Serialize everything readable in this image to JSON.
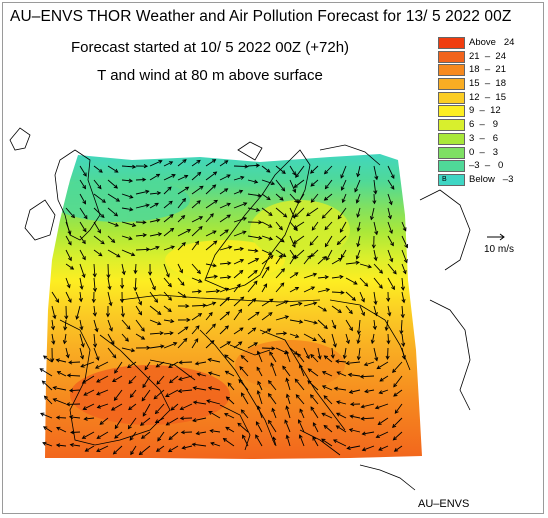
{
  "header": {
    "title": "AU–ENVS THOR Weather and Air Pollution Forecast for 13/ 5 2022  00Z",
    "forecast_start": "Forecast started at 10/ 5 2022  00Z (+72h)",
    "field_description": "T and wind at 80 m above surface"
  },
  "legend": {
    "items": [
      {
        "label": "Above   24",
        "color": "#f03c0f"
      },
      {
        "label": "21  –  24",
        "color": "#f2641d"
      },
      {
        "label": "18  –  21",
        "color": "#f6891e"
      },
      {
        "label": "15  –  18",
        "color": "#f9ad23"
      },
      {
        "label": "12  –  15",
        "color": "#fbcd24"
      },
      {
        "label": "9  –  12",
        "color": "#fdee22"
      },
      {
        "label": "6  –   9",
        "color": "#d8ef2d"
      },
      {
        "label": "3  –   6",
        "color": "#a9e83a"
      },
      {
        "label": "0  –   3",
        "color": "#7ee063"
      },
      {
        "label": "–3  –   0",
        "color": "#4fd998"
      },
      {
        "label": "Below   –3",
        "color": "#3fd6c4",
        "marker": "B"
      }
    ]
  },
  "wind_scale": {
    "label": "10 m/s"
  },
  "credit": "AU–ENVS",
  "colors": {
    "coastline": "#000000",
    "borders": "#000000",
    "arrows": "#000000",
    "frame": "#9a9a9a"
  }
}
